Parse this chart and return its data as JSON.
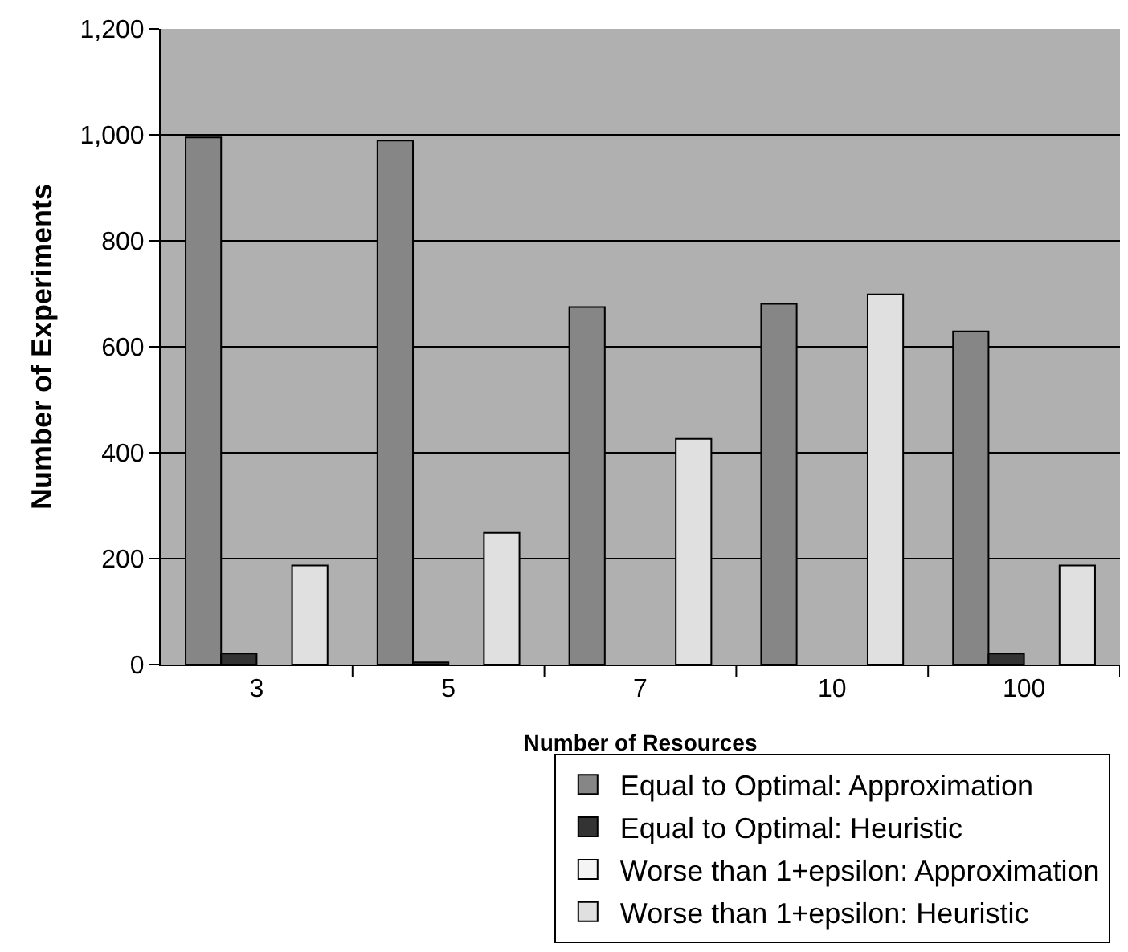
{
  "chart_data": {
    "type": "bar",
    "xlabel": "Number of Resources",
    "ylabel": "Number of Experiments",
    "categories": [
      "3",
      "5",
      "7",
      "10",
      "100"
    ],
    "series": [
      {
        "name": "Equal to Optimal: Approximation",
        "color": "#868686",
        "values": [
          995,
          989,
          675,
          681,
          629
        ]
      },
      {
        "name": "Equal to Optimal: Heuristic",
        "color": "#333333",
        "values": [
          21,
          4,
          null,
          null,
          21
        ]
      },
      {
        "name": "Worse than 1+epsilon: Approximation",
        "color": "#f4f4f4",
        "values": [
          null,
          null,
          null,
          null,
          null
        ]
      },
      {
        "name": "Worse than 1+epsilon: Heuristic",
        "color": "#e0e0e0",
        "values": [
          187,
          249,
          426,
          699,
          187
        ]
      }
    ],
    "ylim": [
      0,
      1200
    ],
    "yticks": [
      0,
      {
        "value": 200,
        "label": "200"
      },
      {
        "value": 400,
        "label": "400"
      },
      {
        "value": 600,
        "label": "600"
      },
      {
        "value": 800,
        "label": "800"
      },
      {
        "value": 1000,
        "label": "1,000"
      },
      {
        "value": 1200,
        "label": "1,200"
      }
    ],
    "grid": "y",
    "legend": "bottom"
  }
}
